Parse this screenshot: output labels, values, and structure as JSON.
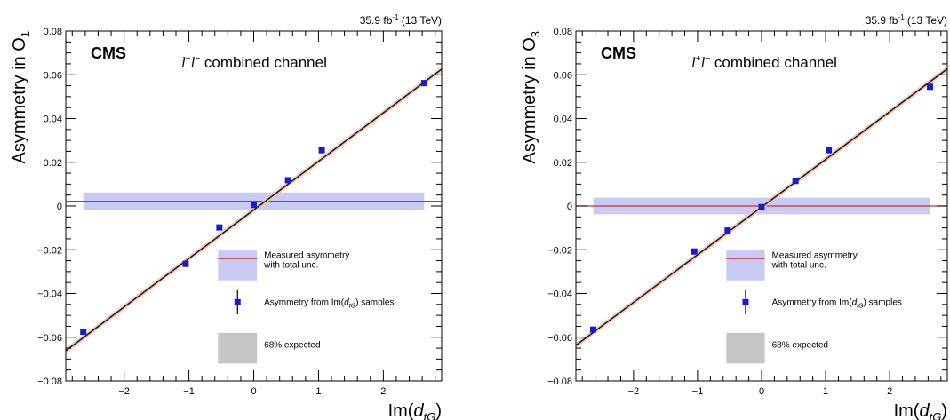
{
  "colors": {
    "measured_band": "#c8ccf5",
    "measured_line": "#d42a2a",
    "expected_band": "#c6c6c6",
    "points": "#1a1ad6",
    "fit_line": "#000000",
    "fit_band": "#f2c1a8"
  },
  "legend": {
    "measured_line1": "Measured asymmetry",
    "measured_line2": "with total unc.",
    "samples_prefix": "Asymmetry from Im(",
    "samples_d": "d",
    "samples_sub": "tG",
    "samples_suffix": ") samples",
    "expected": "68% expected"
  },
  "chart_data": [
    {
      "type": "scatter",
      "cms_label": "CMS",
      "lumi": "35.9 fb",
      "lumi_sup": "-1",
      "energy": " (13 TeV)",
      "channel_l": "l",
      "channel_plus": "+",
      "channel_minus": "−",
      "channel_text": " combined channel",
      "ylabel": "Asymmetry in O",
      "ylabel_sub": "1",
      "xlabel_prefix": "Im(",
      "xlabel_d": "d",
      "xlabel_sub": "tG",
      "xlabel_suffix": ")",
      "xlim": [
        -2.9,
        2.9
      ],
      "ylim": [
        -0.08,
        0.08
      ],
      "xticks": [
        -2,
        -1,
        0,
        1,
        2
      ],
      "yticks": [
        -0.08,
        -0.06,
        -0.04,
        -0.02,
        0,
        0.02,
        0.04,
        0.06,
        0.08
      ],
      "xtick_labels": [
        "−2",
        "−1",
        "0",
        "1",
        "2"
      ],
      "ytick_labels": [
        "−0.08",
        "−0.06",
        "−0.04",
        "−0.02",
        "0",
        "0.02",
        "0.04",
        "0.06",
        "0.08"
      ],
      "points": {
        "x": [
          -2.63,
          -1.05,
          -0.53,
          0.0,
          0.53,
          1.05,
          2.63
        ],
        "y": [
          -0.0575,
          -0.0265,
          -0.0098,
          0.0005,
          0.0118,
          0.0255,
          0.0562
        ],
        "yerr": [
          0.0013,
          0.0013,
          0.0013,
          0.0013,
          0.0013,
          0.0013,
          0.0013
        ]
      },
      "fit": {
        "slope": 0.0222,
        "intercept": -0.0018
      },
      "measured": {
        "value": 0.0022,
        "low": -0.0018,
        "high": 0.0062,
        "x_range": [
          -2.63,
          2.63
        ]
      }
    },
    {
      "type": "scatter",
      "cms_label": "CMS",
      "lumi": "35.9 fb",
      "lumi_sup": "-1",
      "energy": " (13 TeV)",
      "channel_l": "l",
      "channel_plus": "+",
      "channel_minus": "−",
      "channel_text": " combined channel",
      "ylabel": "Asymmetry in O",
      "ylabel_sub": "3",
      "xlabel_prefix": "Im(",
      "xlabel_d": "d",
      "xlabel_sub": "tG",
      "xlabel_suffix": ")",
      "xlim": [
        -2.9,
        2.9
      ],
      "ylim": [
        -0.08,
        0.08
      ],
      "xticks": [
        -2,
        -1,
        0,
        1,
        2
      ],
      "yticks": [
        -0.08,
        -0.06,
        -0.04,
        -0.02,
        0,
        0.02,
        0.04,
        0.06,
        0.08
      ],
      "xtick_labels": [
        "−2",
        "−1",
        "0",
        "1",
        "2"
      ],
      "ytick_labels": [
        "−0.08",
        "−0.06",
        "−0.04",
        "−0.02",
        "0",
        "0.02",
        "0.04",
        "0.06",
        "0.08"
      ],
      "points": {
        "x": [
          -2.63,
          -1.05,
          -0.53,
          0.0,
          0.53,
          1.05,
          2.63
        ],
        "y": [
          -0.0565,
          -0.0208,
          -0.0112,
          -0.0005,
          0.0115,
          0.0255,
          0.0545
        ],
        "yerr": [
          0.0013,
          0.0013,
          0.0013,
          0.0013,
          0.0013,
          0.0013,
          0.0013
        ]
      },
      "fit": {
        "slope": 0.0218,
        "intercept": -0.0005
      },
      "measured": {
        "value": 0.0,
        "low": -0.0038,
        "high": 0.0038,
        "x_range": [
          -2.63,
          2.63
        ]
      }
    }
  ]
}
